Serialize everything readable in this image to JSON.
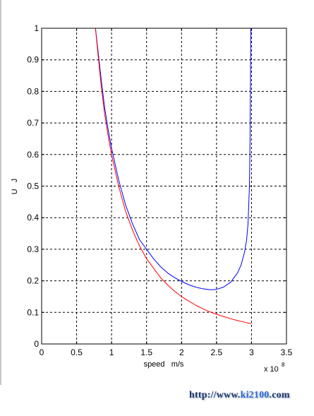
{
  "chart_data": {
    "type": "line",
    "title": "",
    "xlabel": "speed   m/s",
    "ylabel": "U   J",
    "x_multiplier_label": "x 10",
    "x_multiplier_exponent": "8",
    "xlim": [
      0,
      3.5
    ],
    "ylim": [
      0,
      1
    ],
    "x_ticks": [
      "0",
      "0.5",
      "1",
      "1.5",
      "2",
      "2.5",
      "3",
      "3.5"
    ],
    "y_ticks": [
      "0",
      "0.1",
      "0.2",
      "0.3",
      "0.4",
      "0.5",
      "0.6",
      "0.7",
      "0.8",
      "0.9",
      "1"
    ],
    "grid": true,
    "grid_style": "dashed",
    "series": [
      {
        "color": "#0000ff",
        "x": [
          0.77,
          0.8,
          0.85,
          0.9,
          0.95,
          1.0,
          1.1,
          1.2,
          1.3,
          1.4,
          1.5,
          1.6,
          1.7,
          1.8,
          1.9,
          2.0,
          2.1,
          2.2,
          2.3,
          2.4,
          2.45,
          2.5,
          2.6,
          2.7,
          2.8,
          2.85,
          2.9,
          2.93,
          2.95,
          2.97,
          2.98,
          2.99
        ],
        "y": [
          1.0,
          0.94,
          0.84,
          0.75,
          0.68,
          0.62,
          0.52,
          0.44,
          0.38,
          0.33,
          0.3,
          0.27,
          0.245,
          0.225,
          0.21,
          0.198,
          0.188,
          0.18,
          0.175,
          0.172,
          0.172,
          0.173,
          0.18,
          0.195,
          0.225,
          0.25,
          0.29,
          0.33,
          0.38,
          0.5,
          0.65,
          1.0
        ]
      },
      {
        "color": "#ff0000",
        "x": [
          0.77,
          0.8,
          0.85,
          0.9,
          0.95,
          1.0,
          1.1,
          1.2,
          1.3,
          1.4,
          1.5,
          1.6,
          1.7,
          1.8,
          1.9,
          2.0,
          2.1,
          2.2,
          2.3,
          2.4,
          2.5,
          2.6,
          2.7,
          2.8,
          2.9,
          3.0
        ],
        "y": [
          1.0,
          0.93,
          0.82,
          0.73,
          0.66,
          0.6,
          0.5,
          0.42,
          0.36,
          0.31,
          0.27,
          0.24,
          0.21,
          0.187,
          0.167,
          0.15,
          0.136,
          0.123,
          0.112,
          0.102,
          0.094,
          0.087,
          0.08,
          0.074,
          0.069,
          0.064
        ]
      }
    ]
  },
  "watermark": {
    "prefix": "http://www.",
    "accent": "ki2100",
    "suffix": ".com"
  }
}
